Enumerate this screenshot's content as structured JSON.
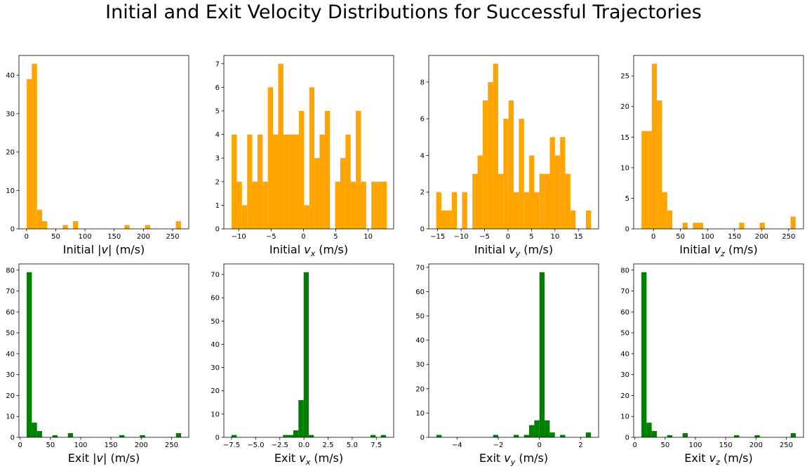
{
  "figure": {
    "title": "Initial and Exit Velocity Distributions for Successful Trajectories"
  },
  "chart_data": [
    {
      "type": "bar",
      "histogram": true,
      "color": "#ffa500",
      "xlabel_pre": "Initial |",
      "xlabel_var": "v",
      "xlabel_sub": "",
      "xlabel_post": "| (m/s)",
      "bins": [
        0.3,
        9.1,
        17.9,
        26.7,
        35.5,
        44.3,
        53.1,
        61.9,
        70.7,
        79.5,
        88.3,
        97.1,
        105.9,
        114.7,
        123.5,
        132.3,
        141.1,
        149.9,
        158.7,
        167.5,
        176.3,
        185.1,
        193.9,
        202.7,
        211.5,
        220.3,
        229.1,
        237.9,
        246.7,
        255.5,
        264.3
      ],
      "counts": [
        39,
        43,
        5,
        2,
        0,
        0,
        0,
        1,
        0,
        2,
        0,
        0,
        0,
        0,
        0,
        0,
        0,
        0,
        0,
        1,
        0,
        0,
        0,
        1,
        0,
        0,
        0,
        0,
        0,
        2
      ],
      "xlim": [
        -13,
        277.6
      ],
      "ylim": [
        0,
        45.15
      ],
      "xticks": [
        0,
        50,
        100,
        150,
        200,
        250
      ],
      "xtick_labels": [
        "0",
        "50",
        "100",
        "150",
        "200",
        "250"
      ],
      "yticks": [
        0,
        10,
        20,
        30,
        40
      ],
      "ytick_labels": [
        "0",
        "10",
        "20",
        "30",
        "40"
      ]
    },
    {
      "type": "bar",
      "histogram": true,
      "color": "#ffa500",
      "xlabel_pre": "Initial ",
      "xlabel_var": "v",
      "xlabel_sub": "x",
      "xlabel_post": " (m/s)",
      "bins": [
        -11.1,
        -10.3,
        -9.5,
        -8.7,
        -7.9,
        -7.1,
        -6.3,
        -5.5,
        -4.7,
        -3.9,
        -3.1,
        -2.3,
        -1.5,
        -0.7,
        0.1,
        0.9,
        1.7,
        2.5,
        3.3,
        4.1,
        4.9,
        5.7,
        6.5,
        7.3,
        8.1,
        8.9,
        9.7,
        10.5,
        11.3,
        12.1,
        12.9
      ],
      "counts": [
        4,
        2,
        1,
        4,
        2,
        4,
        2,
        6,
        4,
        7,
        4,
        4,
        4,
        5,
        1,
        6,
        3,
        4,
        5,
        0,
        2,
        3,
        4,
        2,
        5,
        2,
        0,
        2,
        2,
        2
      ],
      "xlim": [
        -12.3,
        13.95
      ],
      "ylim": [
        0,
        7.35
      ],
      "xticks": [
        -10,
        -5,
        0,
        5,
        10
      ],
      "xtick_labels": [
        "−10",
        "−5",
        "0",
        "5",
        "10"
      ],
      "yticks": [
        0,
        1,
        2,
        3,
        4,
        5,
        6,
        7
      ],
      "ytick_labels": [
        "0",
        "1",
        "2",
        "3",
        "4",
        "5",
        "6",
        "7"
      ]
    },
    {
      "type": "bar",
      "histogram": true,
      "color": "#ffa500",
      "xlabel_pre": "Initial ",
      "xlabel_var": "v",
      "xlabel_sub": "y",
      "xlabel_post": " (m/s)",
      "bins": [
        -15.3,
        -14.2,
        -13.1,
        -12.0,
        -10.9,
        -9.8,
        -8.7,
        -7.6,
        -6.5,
        -5.4,
        -4.3,
        -3.2,
        -2.1,
        -1.0,
        0.1,
        1.2,
        2.3,
        3.4,
        4.5,
        5.6,
        6.7,
        7.8,
        8.9,
        10.0,
        11.1,
        12.2,
        13.3,
        14.4,
        15.5,
        16.6,
        17.7
      ],
      "counts": [
        2,
        1,
        1,
        2,
        0,
        2,
        0,
        3,
        4,
        7,
        8,
        9,
        3,
        6,
        7,
        2,
        6,
        2,
        4,
        2,
        3,
        3,
        5,
        4,
        5,
        3,
        1,
        0,
        0,
        1
      ],
      "xlim": [
        -16.9,
        19.3
      ],
      "ylim": [
        0,
        9.45
      ],
      "xticks": [
        -15,
        -10,
        -5,
        0,
        5,
        10,
        15
      ],
      "xtick_labels": [
        "−15",
        "−10",
        "−5",
        "0",
        "5",
        "10",
        "15"
      ],
      "yticks": [
        0,
        2,
        4,
        6,
        8
      ],
      "ytick_labels": [
        "0",
        "2",
        "4",
        "6",
        "8"
      ]
    },
    {
      "type": "bar",
      "histogram": true,
      "color": "#ffa500",
      "xlabel_pre": "Initial ",
      "xlabel_var": "v",
      "xlabel_sub": "z",
      "xlabel_post": " (m/s)",
      "bins": [
        -22,
        -12.5,
        -3,
        6.5,
        16,
        25.5,
        35,
        44.5,
        54,
        63.5,
        73,
        82.5,
        92,
        101.5,
        111,
        120.5,
        130,
        139.5,
        149,
        158.5,
        168,
        177.5,
        187,
        196.5,
        206,
        215.5,
        225,
        234.5,
        244,
        253.5,
        263
      ],
      "counts": [
        16,
        16,
        27,
        21,
        6,
        3,
        0,
        0,
        1,
        0,
        1,
        1,
        0,
        0,
        0,
        0,
        0,
        0,
        0,
        1,
        0,
        0,
        0,
        1,
        0,
        0,
        0,
        0,
        0,
        2
      ],
      "xlim": [
        -36.5,
        277.5
      ],
      "ylim": [
        0,
        28.35
      ],
      "xticks": [
        0,
        50,
        100,
        150,
        200,
        250
      ],
      "xtick_labels": [
        "0",
        "50",
        "100",
        "150",
        "200",
        "250"
      ],
      "yticks": [
        0,
        5,
        10,
        15,
        20,
        25
      ],
      "ytick_labels": [
        "0",
        "5",
        "10",
        "15",
        "20",
        "25"
      ]
    },
    {
      "type": "bar",
      "histogram": true,
      "color": "#008000",
      "xlabel_pre": "Exit |",
      "xlabel_var": "v",
      "xlabel_sub": "",
      "xlabel_post": "| (m/s)",
      "bins": [
        10.8,
        19.3,
        27.8,
        36.3,
        44.8,
        53.3,
        61.8,
        70.3,
        78.8,
        87.3,
        95.8,
        104.3,
        112.8,
        121.3,
        129.8,
        138.3,
        146.8,
        155.3,
        163.8,
        172.3,
        180.8,
        189.3,
        197.8,
        206.3,
        214.8,
        223.3,
        231.8,
        240.3,
        248.8,
        257.3,
        265.8
      ],
      "counts": [
        79,
        7,
        3,
        0,
        0,
        1,
        0,
        0,
        2,
        0,
        0,
        0,
        0,
        0,
        0,
        0,
        0,
        0,
        1,
        0,
        0,
        0,
        1,
        0,
        0,
        0,
        0,
        0,
        0,
        2
      ],
      "xlim": [
        -2,
        278.5
      ],
      "ylim": [
        0,
        82.95
      ],
      "xticks": [
        0,
        50,
        100,
        150,
        200,
        250
      ],
      "xtick_labels": [
        "0",
        "50",
        "100",
        "150",
        "200",
        "250"
      ],
      "yticks": [
        0,
        10,
        20,
        30,
        40,
        50,
        60,
        70,
        80
      ],
      "ytick_labels": [
        "0",
        "10",
        "20",
        "30",
        "40",
        "50",
        "60",
        "70",
        "80"
      ]
    },
    {
      "type": "bar",
      "histogram": true,
      "color": "#008000",
      "xlabel_pre": "Exit ",
      "xlabel_var": "v",
      "xlabel_sub": "x",
      "xlabel_post": " (m/s)",
      "bins": [
        -7.5,
        -6.97,
        -6.43,
        -5.9,
        -5.37,
        -4.83,
        -4.3,
        -3.77,
        -3.23,
        -2.7,
        -2.17,
        -1.63,
        -1.1,
        -0.57,
        -0.03,
        0.5,
        1.03,
        1.57,
        2.1,
        2.63,
        3.17,
        3.7,
        4.23,
        4.77,
        5.3,
        5.83,
        6.37,
        6.9,
        7.43,
        7.97,
        8.5
      ],
      "counts": [
        1,
        0,
        0,
        0,
        0,
        0,
        0,
        0,
        0,
        0,
        1,
        1,
        3,
        16,
        71,
        1,
        0,
        0,
        0,
        0,
        0,
        0,
        0,
        0,
        0,
        0,
        0,
        1,
        0,
        1
      ],
      "xlim": [
        -8.3,
        9.3
      ],
      "ylim": [
        0,
        74.55
      ],
      "xticks": [
        -7.5,
        -5,
        -2.5,
        0,
        2.5,
        5,
        7.5
      ],
      "xtick_labels": [
        "−7.5",
        "−5.0",
        "−2.5",
        "0.0",
        "2.5",
        "5.0",
        "7.5"
      ],
      "yticks": [
        0,
        10,
        20,
        30,
        40,
        50,
        60,
        70
      ],
      "ytick_labels": [
        "0",
        "10",
        "20",
        "30",
        "40",
        "50",
        "60",
        "70"
      ]
    },
    {
      "type": "bar",
      "histogram": true,
      "color": "#008000",
      "xlabel_pre": "Exit ",
      "xlabel_var": "v",
      "xlabel_sub": "y",
      "xlabel_post": " (m/s)",
      "bins": [
        -5.0,
        -4.75,
        -4.5,
        -4.25,
        -4.0,
        -3.75,
        -3.5,
        -3.25,
        -3.0,
        -2.75,
        -2.5,
        -2.25,
        -2.0,
        -1.75,
        -1.5,
        -1.25,
        -1.0,
        -0.75,
        -0.5,
        -0.25,
        0.0,
        0.25,
        0.5,
        0.75,
        1.0,
        1.25,
        1.5,
        1.75,
        2.0,
        2.25,
        2.5
      ],
      "counts": [
        1,
        0,
        0,
        0,
        0,
        0,
        0,
        0,
        0,
        0,
        0,
        1,
        0,
        0,
        0,
        1,
        0,
        1,
        5,
        7,
        68,
        7,
        2,
        0,
        1,
        0,
        0,
        0,
        0,
        2
      ],
      "xlim": [
        -5.37,
        2.87
      ],
      "ylim": [
        0,
        71.4
      ],
      "xticks": [
        -4,
        -2,
        0,
        2
      ],
      "xtick_labels": [
        "−4",
        "−2",
        "0",
        "2"
      ],
      "yticks": [
        0,
        10,
        20,
        30,
        40,
        50,
        60,
        70
      ],
      "ytick_labels": [
        "0",
        "10",
        "20",
        "30",
        "40",
        "50",
        "60",
        "70"
      ]
    },
    {
      "type": "bar",
      "histogram": true,
      "color": "#008000",
      "xlabel_pre": "Exit ",
      "xlabel_var": "v",
      "xlabel_sub": "z",
      "xlabel_post": " (m/s)",
      "bins": [
        10.8,
        19.3,
        27.8,
        36.3,
        44.8,
        53.3,
        61.8,
        70.3,
        78.8,
        87.3,
        95.8,
        104.3,
        112.8,
        121.3,
        129.8,
        138.3,
        146.8,
        155.3,
        163.8,
        172.3,
        180.8,
        189.3,
        197.8,
        206.3,
        214.8,
        223.3,
        231.8,
        240.3,
        248.8,
        257.3,
        265.8
      ],
      "counts": [
        79,
        7,
        3,
        0,
        0,
        1,
        0,
        0,
        2,
        0,
        0,
        0,
        0,
        0,
        0,
        0,
        0,
        0,
        1,
        0,
        0,
        0,
        1,
        0,
        0,
        0,
        0,
        0,
        0,
        2
      ],
      "xlim": [
        -2,
        278.5
      ],
      "ylim": [
        0,
        82.95
      ],
      "xticks": [
        0,
        50,
        100,
        150,
        200,
        250
      ],
      "xtick_labels": [
        "0",
        "50",
        "100",
        "150",
        "200",
        "250"
      ],
      "yticks": [
        0,
        10,
        20,
        30,
        40,
        50,
        60,
        70,
        80
      ],
      "ytick_labels": [
        "0",
        "10",
        "20",
        "30",
        "40",
        "50",
        "60",
        "70",
        "80"
      ]
    }
  ]
}
